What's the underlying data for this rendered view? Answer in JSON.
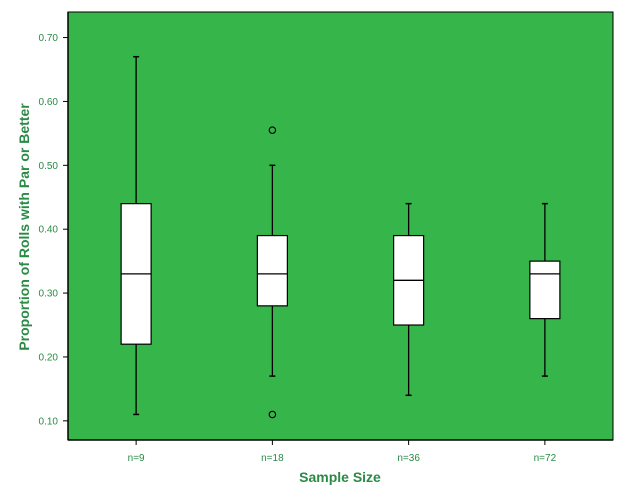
{
  "chart_data": {
    "type": "boxplot",
    "xlabel": "Sample Size",
    "ylabel": "Proportion of Rolls with Par or Better",
    "ylim": [
      0.07,
      0.74
    ],
    "yticks": [
      "0.10",
      "0.20",
      "0.30",
      "0.40",
      "0.50",
      "0.60",
      "0.70"
    ],
    "categories": [
      "n=9",
      "n=18",
      "n=36",
      "n=72"
    ],
    "boxes": [
      {
        "category": "n=9",
        "min": 0.11,
        "q1": 0.22,
        "median": 0.33,
        "q3": 0.44,
        "max": 0.67,
        "outliers": []
      },
      {
        "category": "n=18",
        "min": 0.17,
        "q1": 0.28,
        "median": 0.33,
        "q3": 0.39,
        "max": 0.5,
        "outliers": [
          0.555,
          0.11
        ]
      },
      {
        "category": "n=36",
        "min": 0.14,
        "q1": 0.25,
        "median": 0.32,
        "q3": 0.39,
        "max": 0.44,
        "outliers": []
      },
      {
        "category": "n=72",
        "min": 0.17,
        "q1": 0.26,
        "median": 0.33,
        "q3": 0.35,
        "max": 0.44,
        "outliers": []
      }
    ],
    "grid": false,
    "plot_background": "#36b54a",
    "tick_color": "#2a8a46",
    "box_fill": "#ffffff"
  }
}
